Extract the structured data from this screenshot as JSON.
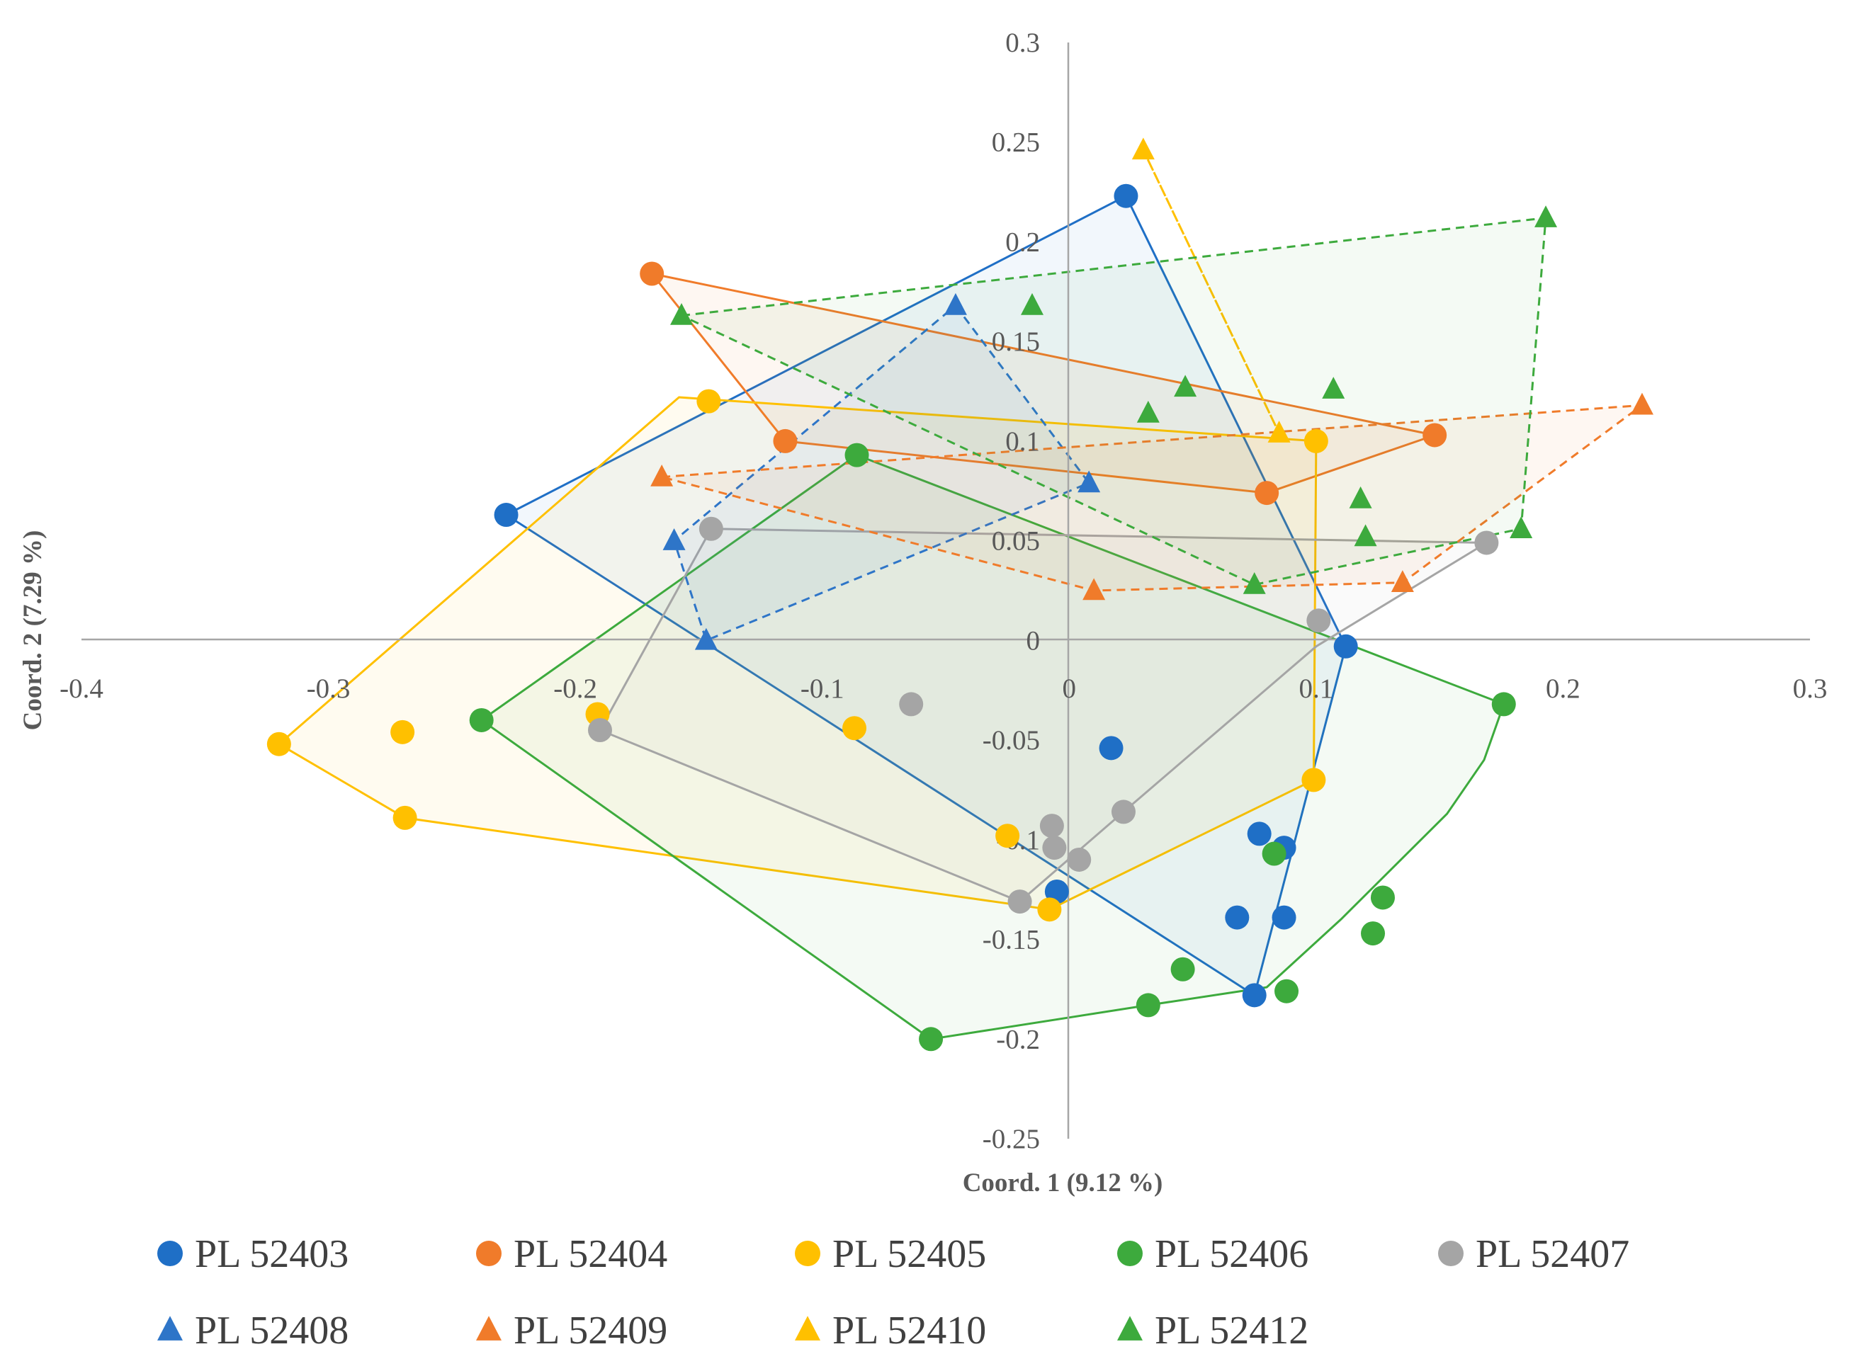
{
  "chart_data": {
    "type": "scatter",
    "title": "",
    "xlabel": "Coord. 1 (9.12 %)",
    "ylabel": "Coord. 2 (7.29 %)",
    "xlim": [
      -0.4,
      0.3
    ],
    "ylim": [
      -0.25,
      0.3
    ],
    "x_ticks": [
      "-0.4",
      "-0.3",
      "-0.2",
      "-0.1",
      "0",
      "0.1",
      "0.2",
      "0.3"
    ],
    "y_ticks": [
      "0.3",
      "0.25",
      "0.2",
      "0.15",
      "0.1",
      "0.05",
      "0",
      "-0.05",
      "-0.1",
      "-0.15",
      "-0.2",
      "-0.25"
    ],
    "legend_position": "bottom",
    "series": [
      {
        "name": "PL 52403",
        "marker": "circle",
        "color": "#1F6FC6",
        "hull_style": "solid",
        "hull": [
          [
            0.023,
            0.223
          ],
          [
            0.112,
            -0.003
          ],
          [
            0.075,
            -0.178
          ],
          [
            -0.228,
            0.063
          ]
        ],
        "points": [
          [
            0.023,
            0.223
          ],
          [
            -0.228,
            0.063
          ],
          [
            0.112,
            -0.003
          ],
          [
            0.017,
            -0.054
          ],
          [
            0.077,
            -0.097
          ],
          [
            0.087,
            -0.104
          ],
          [
            0.068,
            -0.139
          ],
          [
            0.087,
            -0.139
          ],
          [
            -0.005,
            -0.126
          ],
          [
            0.075,
            -0.178
          ]
        ]
      },
      {
        "name": "PL 52404",
        "marker": "circle",
        "color": "#F07B2A",
        "hull_style": "solid",
        "hull": [
          [
            -0.169,
            0.184
          ],
          [
            0.148,
            0.103
          ],
          [
            0.08,
            0.074
          ],
          [
            -0.115,
            0.1
          ]
        ],
        "points": [
          [
            -0.169,
            0.184
          ],
          [
            -0.115,
            0.1
          ],
          [
            0.148,
            0.103
          ],
          [
            0.08,
            0.074
          ]
        ]
      },
      {
        "name": "PL 52405",
        "marker": "circle",
        "color": "#FFC000",
        "hull_style": "solid",
        "hull": [
          [
            -0.158,
            0.122
          ],
          [
            0.1,
            0.1
          ],
          [
            0.099,
            -0.07
          ],
          [
            -0.008,
            -0.135
          ],
          [
            -0.269,
            -0.089
          ],
          [
            -0.32,
            -0.052
          ]
        ],
        "points": [
          [
            -0.146,
            0.12
          ],
          [
            0.1,
            0.1
          ],
          [
            -0.191,
            -0.037
          ],
          [
            -0.087,
            -0.044
          ],
          [
            -0.27,
            -0.046
          ],
          [
            -0.32,
            -0.052
          ],
          [
            -0.269,
            -0.089
          ],
          [
            0.099,
            -0.07
          ],
          [
            -0.025,
            -0.098
          ],
          [
            -0.008,
            -0.135
          ]
        ]
      },
      {
        "name": "PL 52406",
        "marker": "circle",
        "color": "#3DAA3D",
        "hull_style": "solid",
        "hull": [
          [
            -0.086,
            0.093
          ],
          [
            0.176,
            -0.032
          ],
          [
            0.168,
            -0.06
          ],
          [
            0.153,
            -0.087
          ],
          [
            0.11,
            -0.14
          ],
          [
            0.08,
            -0.174
          ],
          [
            0.032,
            -0.183
          ],
          [
            -0.056,
            -0.2
          ],
          [
            -0.238,
            -0.04
          ]
        ],
        "points": [
          [
            -0.086,
            0.093
          ],
          [
            -0.238,
            -0.04
          ],
          [
            0.176,
            -0.032
          ],
          [
            0.083,
            -0.107
          ],
          [
            0.127,
            -0.129
          ],
          [
            0.123,
            -0.147
          ],
          [
            0.046,
            -0.165
          ],
          [
            0.088,
            -0.176
          ],
          [
            0.032,
            -0.183
          ],
          [
            -0.056,
            -0.2
          ]
        ]
      },
      {
        "name": "PL 52407",
        "marker": "circle",
        "color": "#A5A5A5",
        "hull_style": "solid",
        "hull": [
          [
            -0.145,
            0.056
          ],
          [
            0.169,
            0.049
          ],
          [
            0.1,
            -0.003
          ],
          [
            0.022,
            -0.086
          ],
          [
            -0.02,
            -0.131
          ],
          [
            -0.19,
            -0.045
          ],
          [
            -0.17,
            0.0
          ]
        ],
        "points": [
          [
            -0.145,
            0.056
          ],
          [
            0.169,
            0.049
          ],
          [
            0.101,
            0.01
          ],
          [
            -0.064,
            -0.032
          ],
          [
            -0.19,
            -0.045
          ],
          [
            0.022,
            -0.086
          ],
          [
            -0.007,
            -0.093
          ],
          [
            -0.006,
            -0.104
          ],
          [
            0.004,
            -0.11
          ],
          [
            -0.02,
            -0.131
          ]
        ]
      },
      {
        "name": "PL 52408",
        "marker": "triangle",
        "color": "#2E75C8",
        "hull_style": "dashed",
        "hull": [
          [
            -0.046,
            0.168
          ],
          [
            0.008,
            0.079
          ],
          [
            -0.147,
            0.0
          ],
          [
            -0.16,
            0.05
          ]
        ],
        "points": [
          [
            -0.046,
            0.168
          ],
          [
            0.008,
            0.079
          ],
          [
            -0.16,
            0.05
          ],
          [
            -0.147,
            0.0
          ]
        ]
      },
      {
        "name": "PL 52409",
        "marker": "triangle",
        "color": "#F07B2A",
        "hull_style": "dashed",
        "hull": [
          [
            -0.165,
            0.082
          ],
          [
            0.232,
            0.118
          ],
          [
            0.135,
            0.029
          ],
          [
            0.01,
            0.025
          ]
        ],
        "points": [
          [
            -0.165,
            0.082
          ],
          [
            0.232,
            0.118
          ],
          [
            0.135,
            0.029
          ],
          [
            0.01,
            0.025
          ]
        ]
      },
      {
        "name": "PL 52410",
        "marker": "triangle",
        "color": "#FFC000",
        "hull_style": "dashed",
        "hull": [
          [
            0.03,
            0.246
          ],
          [
            0.085,
            0.104
          ]
        ],
        "points": [
          [
            0.03,
            0.246
          ],
          [
            0.085,
            0.104
          ]
        ]
      },
      {
        "name": "PL 52412",
        "marker": "triangle",
        "color": "#3DAA3D",
        "hull_style": "dashed",
        "hull": [
          [
            -0.157,
            0.163
          ],
          [
            0.193,
            0.212
          ],
          [
            0.183,
            0.056
          ],
          [
            0.075,
            0.028
          ]
        ],
        "points": [
          [
            -0.157,
            0.163
          ],
          [
            -0.015,
            0.168
          ],
          [
            0.193,
            0.212
          ],
          [
            0.047,
            0.127
          ],
          [
            0.107,
            0.126
          ],
          [
            0.032,
            0.114
          ],
          [
            0.118,
            0.071
          ],
          [
            0.12,
            0.052
          ],
          [
            0.183,
            0.056
          ],
          [
            0.075,
            0.028
          ]
        ]
      }
    ]
  }
}
